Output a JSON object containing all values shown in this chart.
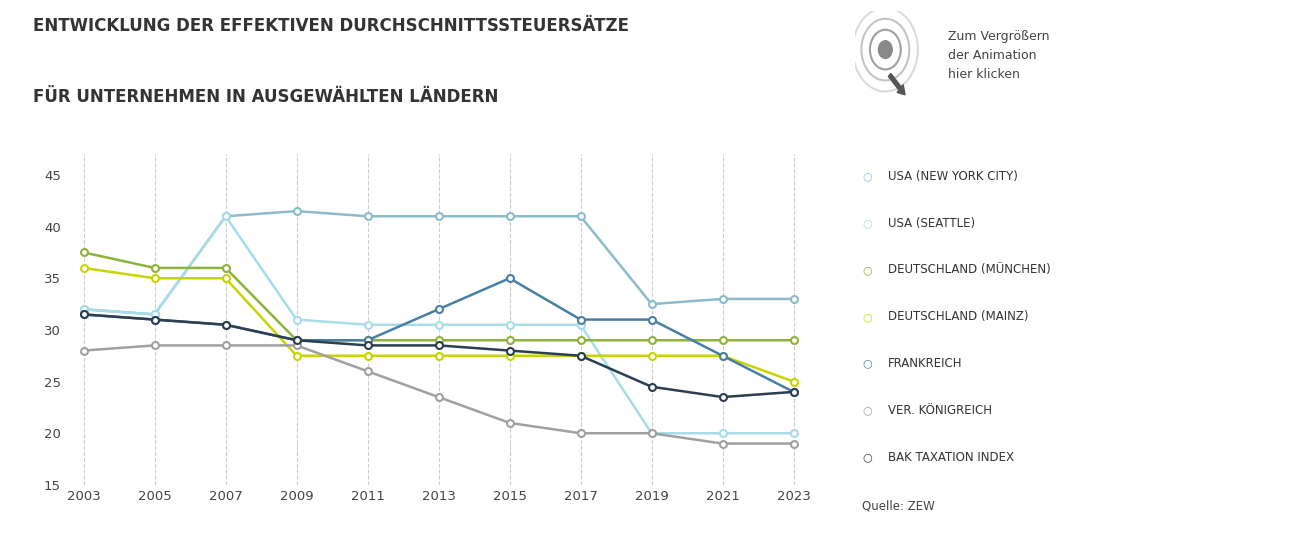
{
  "title_line1": "ENTWICKLUNG DER EFFEKTIVEN DURCHSCHNITTSSTEUERSÄTZE",
  "title_line2": "FÜR UNTERNEHMEN IN AUSGEWÄHLTEN LÄNDERN",
  "years": [
    2003,
    2005,
    2007,
    2009,
    2011,
    2013,
    2015,
    2017,
    2019,
    2021,
    2023
  ],
  "series": [
    {
      "name": "USA (NEW YORK CITY)",
      "color": "#8bbccc",
      "values": [
        32,
        31.5,
        41,
        41.5,
        41,
        41,
        41,
        41,
        32.5,
        33,
        33
      ]
    },
    {
      "name": "USA (SEATTLE)",
      "color": "#a8dce8",
      "values": [
        32,
        31.5,
        41,
        31,
        30.5,
        30.5,
        30.5,
        30.5,
        20,
        20,
        20
      ]
    },
    {
      "name": "DEUTSCHLAND (MÜNCHEN)",
      "color": "#8db33a",
      "values": [
        37.5,
        36,
        36,
        29,
        29,
        29,
        29,
        29,
        29,
        29,
        29
      ]
    },
    {
      "name": "DEUTSCHLAND (MAINZ)",
      "color": "#c8d400",
      "values": [
        36,
        35,
        35,
        27.5,
        27.5,
        27.5,
        27.5,
        27.5,
        27.5,
        27.5,
        25
      ]
    },
    {
      "name": "FRANKREICH",
      "color": "#4a7fa5",
      "values": [
        31.5,
        31,
        30.5,
        29,
        29,
        32,
        35,
        31,
        31,
        27.5,
        24
      ]
    },
    {
      "name": "VER. KÖNIGREICH",
      "color": "#a0a0a0",
      "values": [
        28,
        28.5,
        28.5,
        28.5,
        26,
        23.5,
        21,
        20,
        20,
        19,
        19
      ]
    },
    {
      "name": "BAK TAXATION INDEX",
      "color": "#2c3e50",
      "values": [
        31.5,
        31,
        30.5,
        29,
        28.5,
        28.5,
        28,
        27.5,
        24.5,
        23.5,
        24
      ]
    }
  ],
  "ylim": [
    15,
    47
  ],
  "yticks": [
    15,
    20,
    25,
    30,
    35,
    40,
    45
  ],
  "source_text": "Quelle: ZEW",
  "annotation_text": "Zum Vergrößern\nder Animation\nhier klicken",
  "background_color": "#ffffff",
  "grid_color": "#cccccc"
}
